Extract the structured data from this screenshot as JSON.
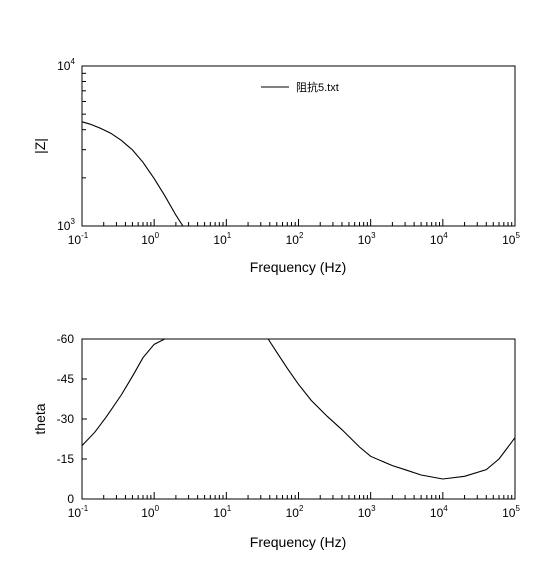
{
  "chart_data": [
    {
      "type": "line",
      "xlabel": "Frequency (Hz)",
      "ylabel": "|Z|",
      "x_scale": "log",
      "y_scale": "log",
      "xlim": [
        0.1,
        100000
      ],
      "ylim": [
        1000,
        10000
      ],
      "x_ticks": [
        0.1,
        1,
        10,
        100,
        1000,
        10000,
        100000
      ],
      "x_tick_labels": [
        {
          "base": "10",
          "exp": "-1"
        },
        {
          "base": "10",
          "exp": "0"
        },
        {
          "base": "10",
          "exp": "1"
        },
        {
          "base": "10",
          "exp": "2"
        },
        {
          "base": "10",
          "exp": "3"
        },
        {
          "base": "10",
          "exp": "4"
        },
        {
          "base": "10",
          "exp": "5"
        }
      ],
      "y_ticks": [
        1000,
        10000
      ],
      "y_tick_labels": [
        {
          "base": "10",
          "exp": "3"
        },
        {
          "base": "10",
          "exp": "4"
        }
      ],
      "grid": false,
      "legend_position": "top-center",
      "series": [
        {
          "name": "阻抗5.txt",
          "x": [
            0.1,
            0.13,
            0.18,
            0.25,
            0.35,
            0.5,
            0.7,
            1.0,
            1.4,
            2.0,
            2.5
          ],
          "y": [
            4480,
            4330,
            4080,
            3800,
            3430,
            2990,
            2500,
            1980,
            1550,
            1170,
            1000
          ]
        }
      ]
    },
    {
      "type": "line",
      "xlabel": "Frequency (Hz)",
      "ylabel": "theta",
      "x_scale": "log",
      "xlim": [
        0.1,
        100000
      ],
      "ylim": [
        0,
        -60
      ],
      "x_ticks": [
        0.1,
        1,
        10,
        100,
        1000,
        10000,
        100000
      ],
      "x_tick_labels": [
        {
          "base": "10",
          "exp": "-1"
        },
        {
          "base": "10",
          "exp": "0"
        },
        {
          "base": "10",
          "exp": "1"
        },
        {
          "base": "10",
          "exp": "2"
        },
        {
          "base": "10",
          "exp": "3"
        },
        {
          "base": "10",
          "exp": "4"
        },
        {
          "base": "10",
          "exp": "5"
        }
      ],
      "y_ticks": [
        -60,
        -45,
        -30,
        -15,
        0
      ],
      "y_tick_labels": [
        "-60",
        "-45",
        "-30",
        "-15",
        "0"
      ],
      "grid": false,
      "series": [
        {
          "x": [
            0.1,
            0.15,
            0.22,
            0.35,
            0.5,
            0.7,
            1.0,
            1.4,
            2,
            5,
            10,
            20,
            38,
            50,
            70,
            100,
            150,
            250,
            400,
            700,
            1000,
            2000,
            3000,
            5000,
            10000,
            20000,
            40000,
            60000,
            100000
          ],
          "y": [
            -20,
            -25,
            -31,
            -39,
            -46,
            -53,
            -58,
            -60,
            -60,
            -60,
            -60,
            -60,
            -60,
            -55,
            -49,
            -43,
            -37,
            -31,
            -26,
            -19.5,
            -16,
            -12.5,
            -11,
            -9,
            -7.5,
            -8.5,
            -11,
            -15,
            -23
          ]
        }
      ]
    }
  ]
}
